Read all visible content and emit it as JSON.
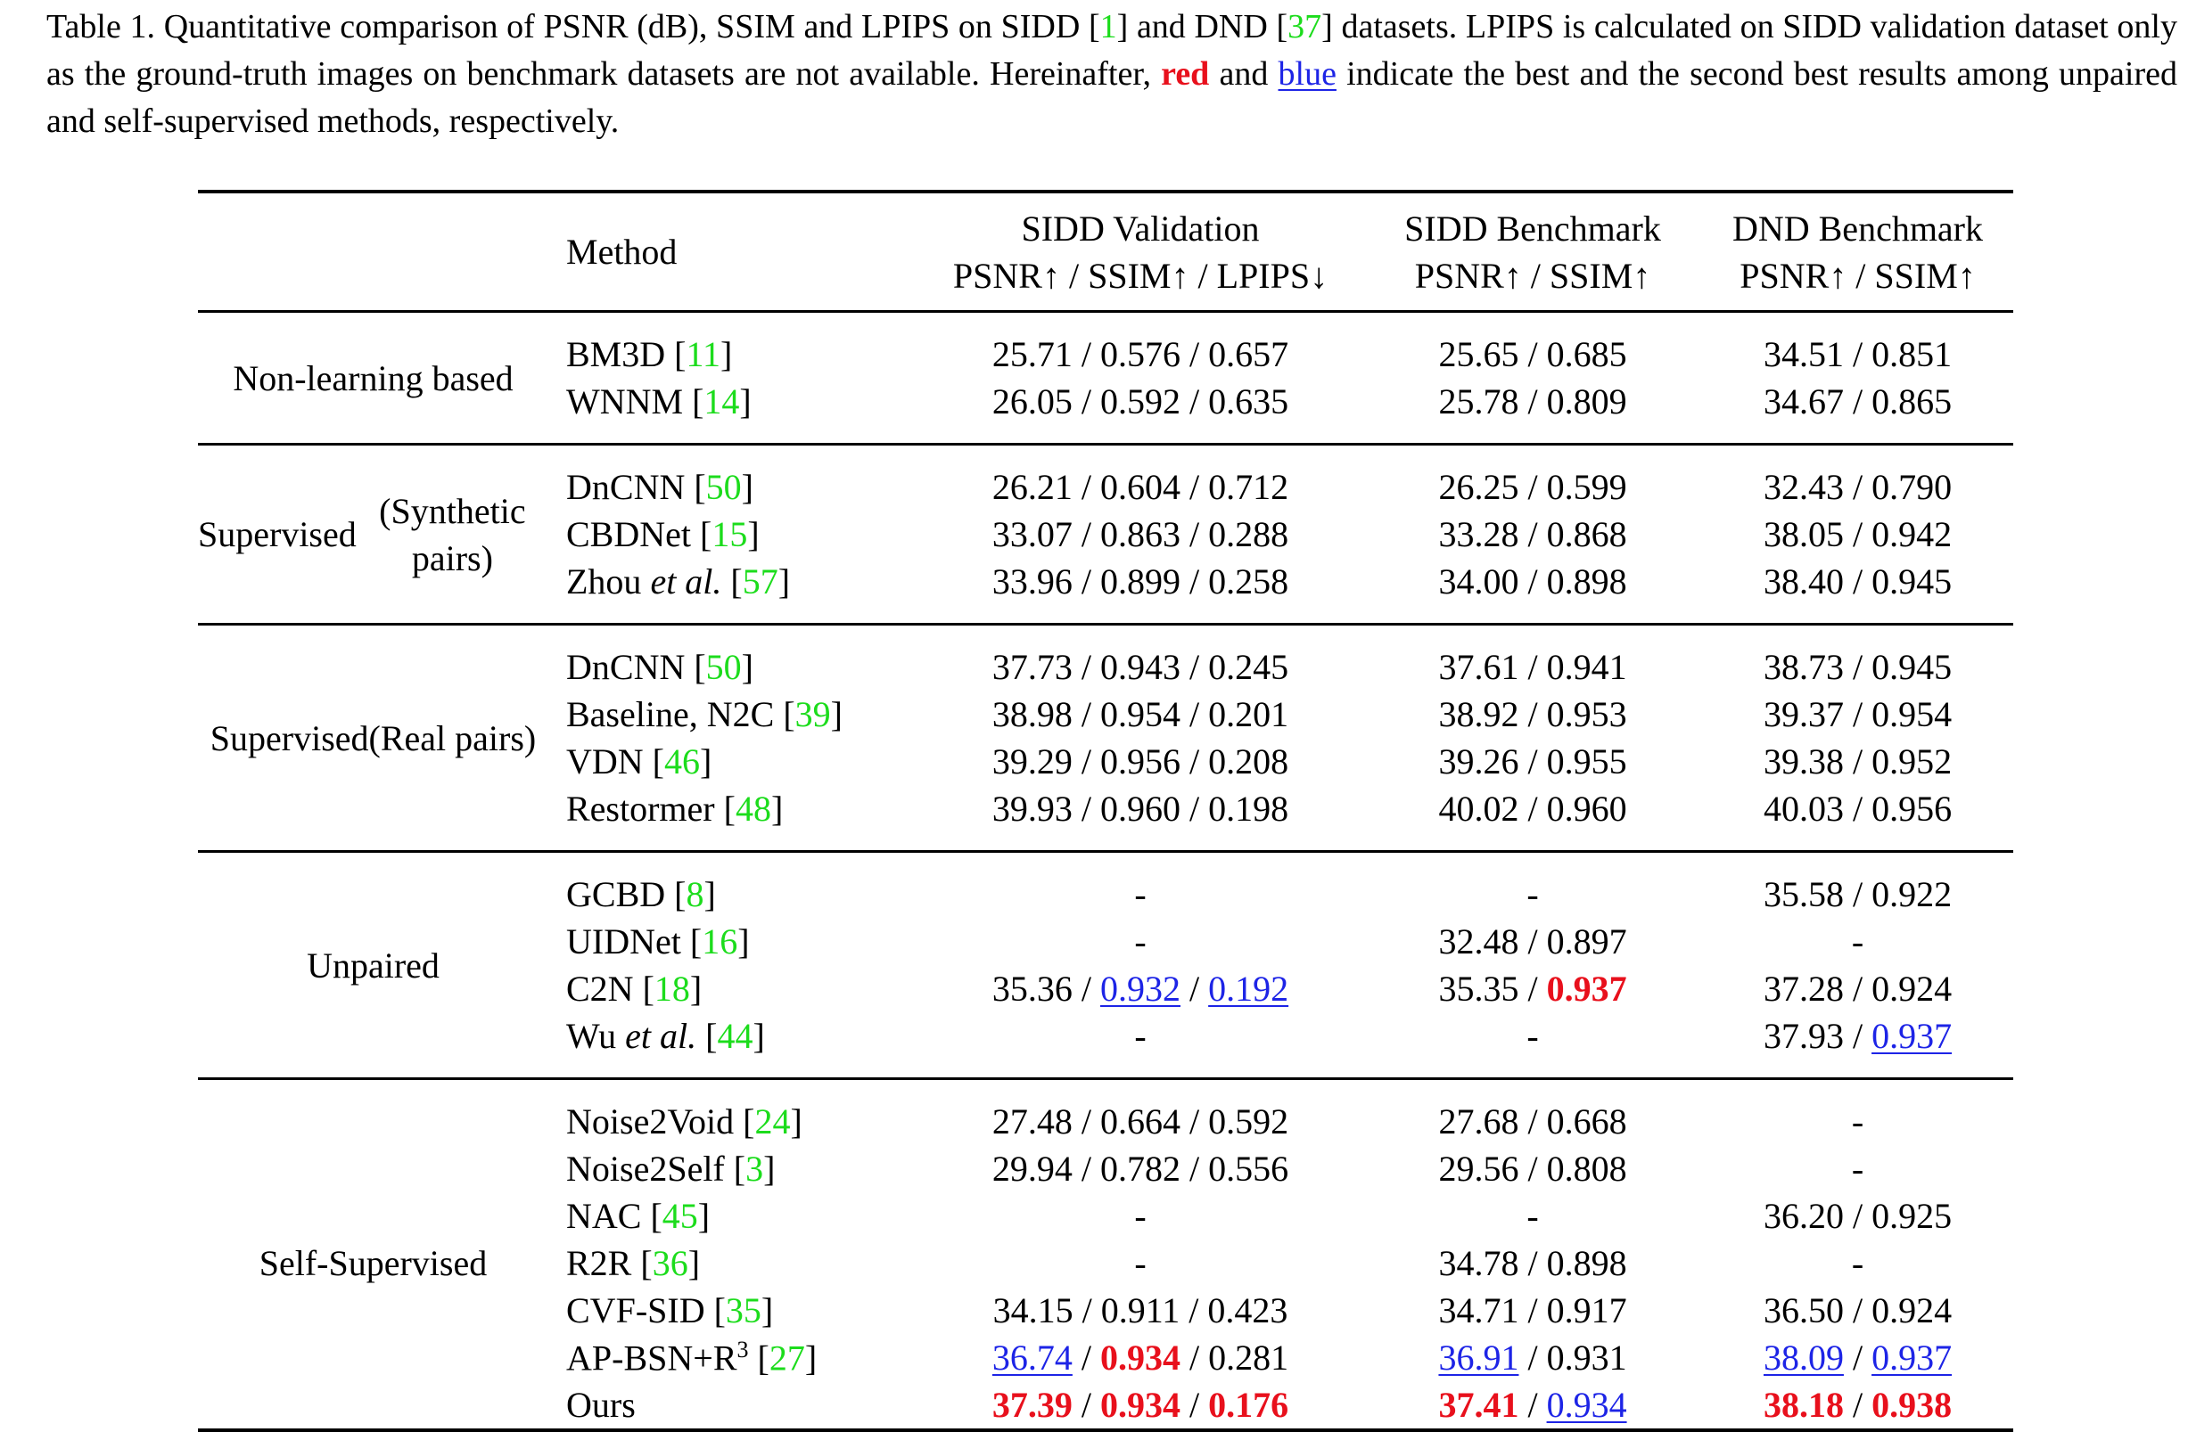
{
  "caption": {
    "part1": "Table 1.  Quantitative comparison of PSNR (dB), SSIM and LPIPS on SIDD [",
    "cite1": "1",
    "part2": "] and DND [",
    "cite2": "37",
    "part3": "] datasets.  LPIPS is calculated on SIDD validation dataset only as the ground-truth images on benchmark datasets are not available. Hereinafter, ",
    "red_word": "red",
    "part4": " and ",
    "blue_word": "blue",
    "part5": " indicate the best and the second best results among unpaired and self-supervised methods, respectively."
  },
  "header": {
    "method": "Method",
    "col1_top": "SIDD Validation",
    "col1_bot": "PSNR↑ / SSIM↑ / LPIPS↓",
    "col2_top": "SIDD Benchmark",
    "col2_bot": "PSNR↑ / SSIM↑",
    "col3_top": "DND Benchmark",
    "col3_bot": "PSNR↑ / SSIM↑"
  },
  "groups": [
    {
      "label_lines": [
        "Non-learning based"
      ],
      "rows": [
        {
          "method": "BM3D",
          "cite": "11",
          "c1": [
            {
              "t": "25.71"
            },
            {
              "t": "0.576"
            },
            {
              "t": "0.657"
            }
          ],
          "c2": [
            {
              "t": "25.65"
            },
            {
              "t": "0.685"
            }
          ],
          "c3": [
            {
              "t": "34.51"
            },
            {
              "t": "0.851"
            }
          ]
        },
        {
          "method": "WNNM",
          "cite": "14",
          "c1": [
            {
              "t": "26.05"
            },
            {
              "t": "0.592"
            },
            {
              "t": "0.635"
            }
          ],
          "c2": [
            {
              "t": "25.78"
            },
            {
              "t": "0.809"
            }
          ],
          "c3": [
            {
              "t": "34.67"
            },
            {
              "t": "0.865"
            }
          ]
        }
      ]
    },
    {
      "label_lines": [
        "Supervised",
        "(Synthetic pairs)"
      ],
      "rows": [
        {
          "method": "DnCNN",
          "cite": "50",
          "c1": [
            {
              "t": "26.21"
            },
            {
              "t": "0.604"
            },
            {
              "t": "0.712"
            }
          ],
          "c2": [
            {
              "t": "26.25"
            },
            {
              "t": "0.599"
            }
          ],
          "c3": [
            {
              "t": "32.43"
            },
            {
              "t": "0.790"
            }
          ]
        },
        {
          "method": "CBDNet",
          "cite": "15",
          "c1": [
            {
              "t": "33.07"
            },
            {
              "t": "0.863"
            },
            {
              "t": "0.288"
            }
          ],
          "c2": [
            {
              "t": "33.28"
            },
            {
              "t": "0.868"
            }
          ],
          "c3": [
            {
              "t": "38.05"
            },
            {
              "t": "0.942"
            }
          ]
        },
        {
          "method": "Zhou",
          "method_italic": "et al.",
          "cite": "57",
          "c1": [
            {
              "t": "33.96"
            },
            {
              "t": "0.899"
            },
            {
              "t": "0.258"
            }
          ],
          "c2": [
            {
              "t": "34.00"
            },
            {
              "t": "0.898"
            }
          ],
          "c3": [
            {
              "t": "38.40"
            },
            {
              "t": "0.945"
            }
          ]
        }
      ]
    },
    {
      "label_lines": [
        "Supervised",
        "(Real pairs)"
      ],
      "rows": [
        {
          "method": "DnCNN",
          "cite": "50",
          "c1": [
            {
              "t": "37.73"
            },
            {
              "t": "0.943"
            },
            {
              "t": "0.245"
            }
          ],
          "c2": [
            {
              "t": "37.61"
            },
            {
              "t": "0.941"
            }
          ],
          "c3": [
            {
              "t": "38.73"
            },
            {
              "t": "0.945"
            }
          ]
        },
        {
          "method": "Baseline, N2C",
          "cite": "39",
          "c1": [
            {
              "t": "38.98"
            },
            {
              "t": "0.954"
            },
            {
              "t": "0.201"
            }
          ],
          "c2": [
            {
              "t": "38.92"
            },
            {
              "t": "0.953"
            }
          ],
          "c3": [
            {
              "t": "39.37"
            },
            {
              "t": "0.954"
            }
          ]
        },
        {
          "method": "VDN",
          "cite": "46",
          "c1": [
            {
              "t": "39.29"
            },
            {
              "t": "0.956"
            },
            {
              "t": "0.208"
            }
          ],
          "c2": [
            {
              "t": "39.26"
            },
            {
              "t": "0.955"
            }
          ],
          "c3": [
            {
              "t": "39.38"
            },
            {
              "t": "0.952"
            }
          ]
        },
        {
          "method": "Restormer",
          "cite": "48",
          "c1": [
            {
              "t": "39.93"
            },
            {
              "t": "0.960"
            },
            {
              "t": "0.198"
            }
          ],
          "c2": [
            {
              "t": "40.02"
            },
            {
              "t": "0.960"
            }
          ],
          "c3": [
            {
              "t": "40.03"
            },
            {
              "t": "0.956"
            }
          ]
        }
      ]
    },
    {
      "label_lines": [
        "Unpaired"
      ],
      "rows": [
        {
          "method": "GCBD",
          "cite": "8",
          "c1": [
            {
              "t": "-"
            }
          ],
          "c2": [
            {
              "t": "-"
            }
          ],
          "c3": [
            {
              "t": "35.58"
            },
            {
              "t": "0.922"
            }
          ]
        },
        {
          "method": "UIDNet",
          "cite": "16",
          "c1": [
            {
              "t": "-"
            }
          ],
          "c2": [
            {
              "t": "32.48"
            },
            {
              "t": "0.897"
            }
          ],
          "c3": [
            {
              "t": "-"
            }
          ]
        },
        {
          "method": "C2N",
          "cite": "18",
          "c1": [
            {
              "t": "35.36"
            },
            {
              "t": "0.932",
              "s": "blue"
            },
            {
              "t": "0.192",
              "s": "blue"
            }
          ],
          "c2": [
            {
              "t": "35.35"
            },
            {
              "t": "0.937",
              "s": "red"
            }
          ],
          "c3": [
            {
              "t": "37.28"
            },
            {
              "t": "0.924"
            }
          ]
        },
        {
          "method": "Wu",
          "method_italic": "et al.",
          "cite": "44",
          "c1": [
            {
              "t": "-"
            }
          ],
          "c2": [
            {
              "t": "-"
            }
          ],
          "c3": [
            {
              "t": "37.93"
            },
            {
              "t": "0.937",
              "s": "blue"
            }
          ]
        }
      ]
    },
    {
      "label_lines": [
        "Self-Supervised"
      ],
      "rows": [
        {
          "method": "Noise2Void",
          "cite": "24",
          "c1": [
            {
              "t": "27.48"
            },
            {
              "t": "0.664"
            },
            {
              "t": "0.592"
            }
          ],
          "c2": [
            {
              "t": "27.68"
            },
            {
              "t": "0.668"
            }
          ],
          "c3": [
            {
              "t": "-"
            }
          ]
        },
        {
          "method": "Noise2Self",
          "cite": "3",
          "c1": [
            {
              "t": "29.94"
            },
            {
              "t": "0.782"
            },
            {
              "t": "0.556"
            }
          ],
          "c2": [
            {
              "t": "29.56"
            },
            {
              "t": "0.808"
            }
          ],
          "c3": [
            {
              "t": "-"
            }
          ]
        },
        {
          "method": "NAC",
          "cite": "45",
          "c1": [
            {
              "t": "-"
            }
          ],
          "c2": [
            {
              "t": "-"
            }
          ],
          "c3": [
            {
              "t": "36.20"
            },
            {
              "t": "0.925"
            }
          ]
        },
        {
          "method": "R2R",
          "cite": "36",
          "c1": [
            {
              "t": "-"
            }
          ],
          "c2": [
            {
              "t": "34.78"
            },
            {
              "t": "0.898"
            }
          ],
          "c3": [
            {
              "t": "-"
            }
          ]
        },
        {
          "method": "CVF-SID",
          "cite": "35",
          "c1": [
            {
              "t": "34.15"
            },
            {
              "t": "0.911"
            },
            {
              "t": "0.423"
            }
          ],
          "c2": [
            {
              "t": "34.71"
            },
            {
              "t": "0.917"
            }
          ],
          "c3": [
            {
              "t": "36.50"
            },
            {
              "t": "0.924"
            }
          ]
        },
        {
          "method": "AP-BSN+R",
          "method_sup": "3",
          "cite": "27",
          "c1": [
            {
              "t": "36.74",
              "s": "blue"
            },
            {
              "t": "0.934",
              "s": "red"
            },
            {
              "t": "0.281"
            }
          ],
          "c2": [
            {
              "t": "36.91",
              "s": "blue"
            },
            {
              "t": "0.931"
            }
          ],
          "c3": [
            {
              "t": "38.09",
              "s": "blue"
            },
            {
              "t": "0.937",
              "s": "blue"
            }
          ]
        },
        {
          "method": "Ours",
          "c1": [
            {
              "t": "37.39",
              "s": "red"
            },
            {
              "t": "0.934",
              "s": "red"
            },
            {
              "t": "0.176",
              "s": "red"
            }
          ],
          "c2": [
            {
              "t": "37.41",
              "s": "red"
            },
            {
              "t": "0.934",
              "s": "blue"
            }
          ],
          "c3": [
            {
              "t": "38.18",
              "s": "red"
            },
            {
              "t": "0.938",
              "s": "red"
            }
          ]
        }
      ]
    }
  ]
}
